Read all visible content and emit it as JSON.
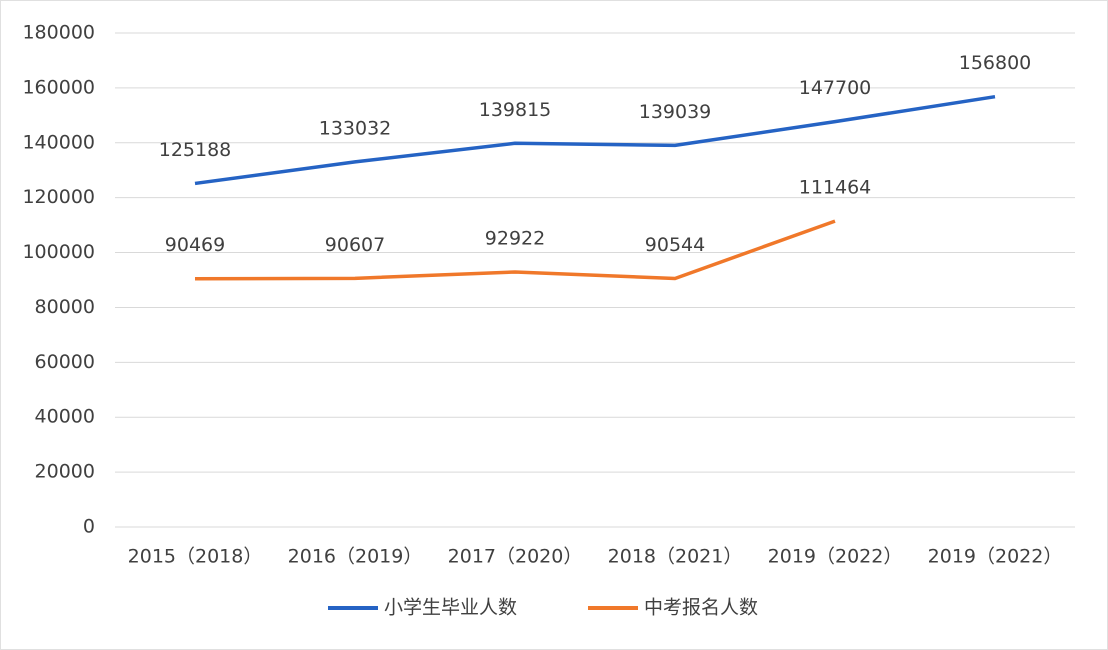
{
  "chart_data": {
    "type": "line",
    "categories": [
      "2015（2018）",
      "2016（2019）",
      "2017（2020）",
      "2018（2021）",
      "2019（2022）",
      "2019（2022）"
    ],
    "series": [
      {
        "name": "小学生毕业人数",
        "color": "#2563c4",
        "values": [
          125188,
          133032,
          139815,
          139039,
          147700,
          156800
        ]
      },
      {
        "name": "中考报名人数",
        "color": "#f0782a",
        "values": [
          90469,
          90607,
          92922,
          90544,
          111464,
          null
        ]
      }
    ],
    "ylim": [
      0,
      180000
    ],
    "yticks": [
      0,
      20000,
      40000,
      60000,
      80000,
      100000,
      120000,
      140000,
      160000,
      180000
    ],
    "grid": true,
    "legend": "bottom"
  }
}
